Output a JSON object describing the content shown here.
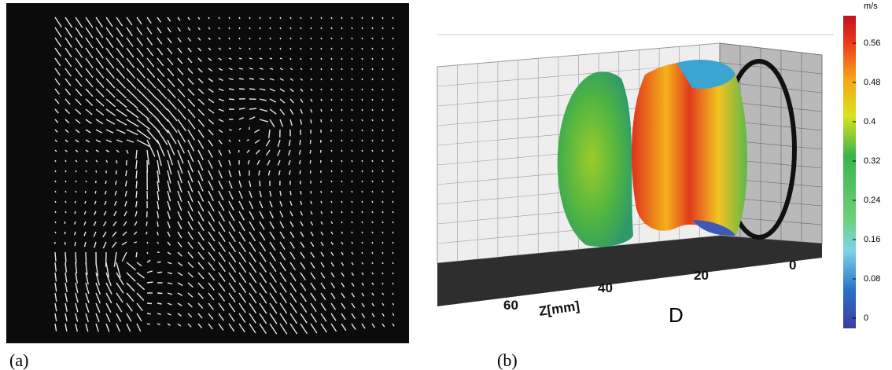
{
  "panels": [
    {
      "label": "(a)"
    },
    {
      "label": "(b)",
      "axis_ticks": [
        "60",
        "40",
        "20",
        "0"
      ],
      "axis_label": "Z[mm]",
      "case_label": "D",
      "colorbar": {
        "unit": "m/s",
        "ticks": [
          "0.56",
          "0.48",
          "0.4",
          "0.32",
          "0.24",
          "0.16",
          "0.08",
          "0"
        ]
      }
    }
  ]
}
